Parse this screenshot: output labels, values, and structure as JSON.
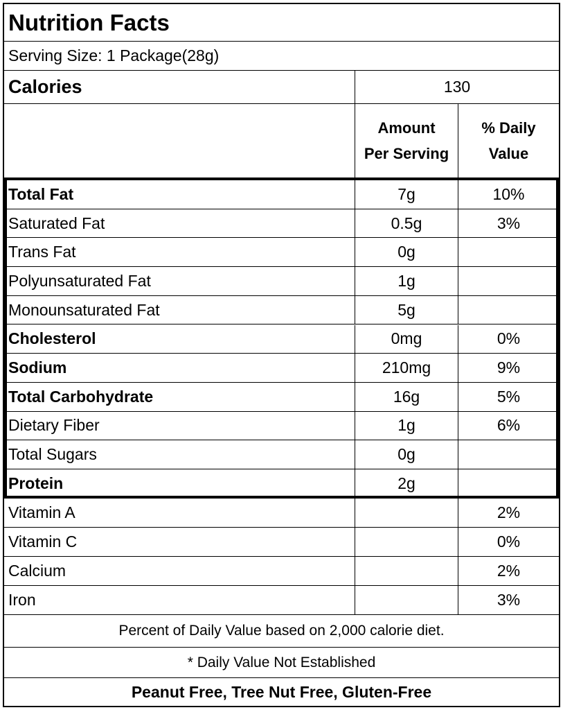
{
  "title": "Nutrition Facts",
  "serving_size": "Serving Size: 1 Package(28g)",
  "calories": {
    "label": "Calories",
    "value": "130"
  },
  "header": {
    "amount_line1": "Amount",
    "amount_line2": "Per Serving",
    "dv_line1": "% Daily",
    "dv_line2": "Value"
  },
  "nutrients": [
    {
      "name": "Total Fat",
      "amount": "7g",
      "dv": "10%"
    },
    {
      "name": "Saturated Fat",
      "amount": "0.5g",
      "dv": "3%"
    },
    {
      "name": "Trans Fat",
      "amount": "0g",
      "dv": ""
    },
    {
      "name": "Polyunsaturated Fat",
      "amount": "1g",
      "dv": ""
    },
    {
      "name": "Monounsaturated Fat",
      "amount": "5g",
      "dv": ""
    },
    {
      "name": "Cholesterol",
      "amount": "0mg",
      "dv": "0%"
    },
    {
      "name": "Sodium",
      "amount": "210mg",
      "dv": "9%"
    },
    {
      "name": "Total Carbohydrate",
      "amount": "16g",
      "dv": "5%"
    },
    {
      "name": "Dietary Fiber",
      "amount": "1g",
      "dv": "6%"
    },
    {
      "name": "Total Sugars",
      "amount": "0g",
      "dv": ""
    },
    {
      "name": "Protein",
      "amount": "2g",
      "dv": ""
    }
  ],
  "vitamins": [
    {
      "name": "Vitamin A",
      "amount": "",
      "dv": "2%"
    },
    {
      "name": "Vitamin C",
      "amount": "",
      "dv": "0%"
    },
    {
      "name": "Calcium",
      "amount": "",
      "dv": "2%"
    },
    {
      "name": "Iron",
      "amount": "",
      "dv": "3%"
    }
  ],
  "footer": {
    "daily_value_note": "Percent of Daily Value based on 2,000 calorie diet.",
    "not_established_note": "* Daily Value Not Established",
    "allergen_note": "Peanut Free, Tree Nut Free, Gluten-Free"
  }
}
